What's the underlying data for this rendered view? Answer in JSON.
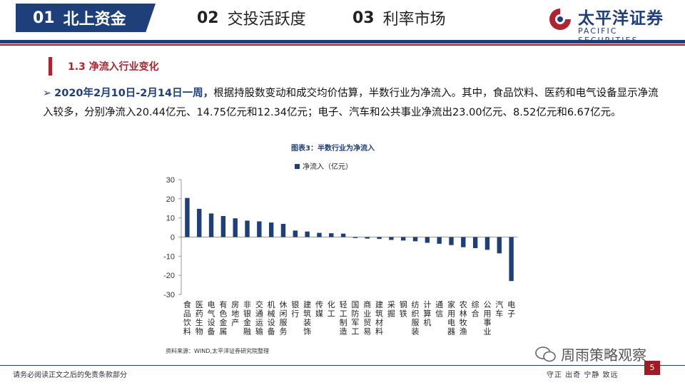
{
  "nav": {
    "tabs": [
      {
        "num": "01",
        "label": "北上资金",
        "active": true
      },
      {
        "num": "02",
        "label": "交投活跃度",
        "active": false
      },
      {
        "num": "03",
        "label": "利率市场",
        "active": false
      }
    ]
  },
  "logo": {
    "cn": "太平洋证券",
    "en": "PACIFIC SECURITIES"
  },
  "section": {
    "title": "1.3 净流入行业变化"
  },
  "body": {
    "lead": "2020年2月10日-2月14日一周，",
    "rest": "根据持股数变动和成交均价估算，半数行业为净流入。其中，食品饮料、医药和电气设备显示净流入较多，分别净流入20.44亿元、14.75亿元和12.34亿元；电子、汽车和公共事业净流出23.00亿元、8.52亿元和6.67亿元。"
  },
  "chart_title": "图表3：半数行业为净流入",
  "source": "资料来源：WIND,太平洋证券研究院整理",
  "footer": {
    "left": "请务必阅读正文之后的免责条款部分",
    "right": "守正 出奇 宁静 致远",
    "page": "5",
    "watermark": "周雨策略观察"
  },
  "colors": {
    "brand": "#1f3f7a",
    "accent": "#b02430",
    "bar": "#1f3f7a"
  },
  "chart_data": {
    "type": "bar",
    "legend": "净流入（亿元）",
    "legend_position": "top",
    "grid": false,
    "ylim": [
      -30,
      30
    ],
    "yticks": [
      30,
      20,
      10,
      0,
      -10,
      -20,
      -30
    ],
    "categories": [
      "食品饮料",
      "医药生物",
      "电气设备",
      "有色金属",
      "房地产",
      "非银金融",
      "交通运输",
      "机械设备",
      "休闲服务",
      "银行",
      "建筑装饰",
      "传媒",
      "化工",
      "轻工制造",
      "国防军工",
      "商业贸易",
      "建筑材料",
      "采掘",
      "钢铁",
      "纺织服装",
      "计算机",
      "通信",
      "家用电器",
      "农林牧渔",
      "综合",
      "公用事业",
      "汽车",
      "电子"
    ],
    "values": [
      20.44,
      14.75,
      12.34,
      11.0,
      9.8,
      8.6,
      8.2,
      7.6,
      6.9,
      3.4,
      2.9,
      2.2,
      2.0,
      1.8,
      -0.5,
      -0.8,
      -1.0,
      -1.5,
      -1.8,
      -2.2,
      -3.0,
      -3.5,
      -4.2,
      -5.3,
      -5.8,
      -6.67,
      -8.52,
      -23.0
    ]
  }
}
